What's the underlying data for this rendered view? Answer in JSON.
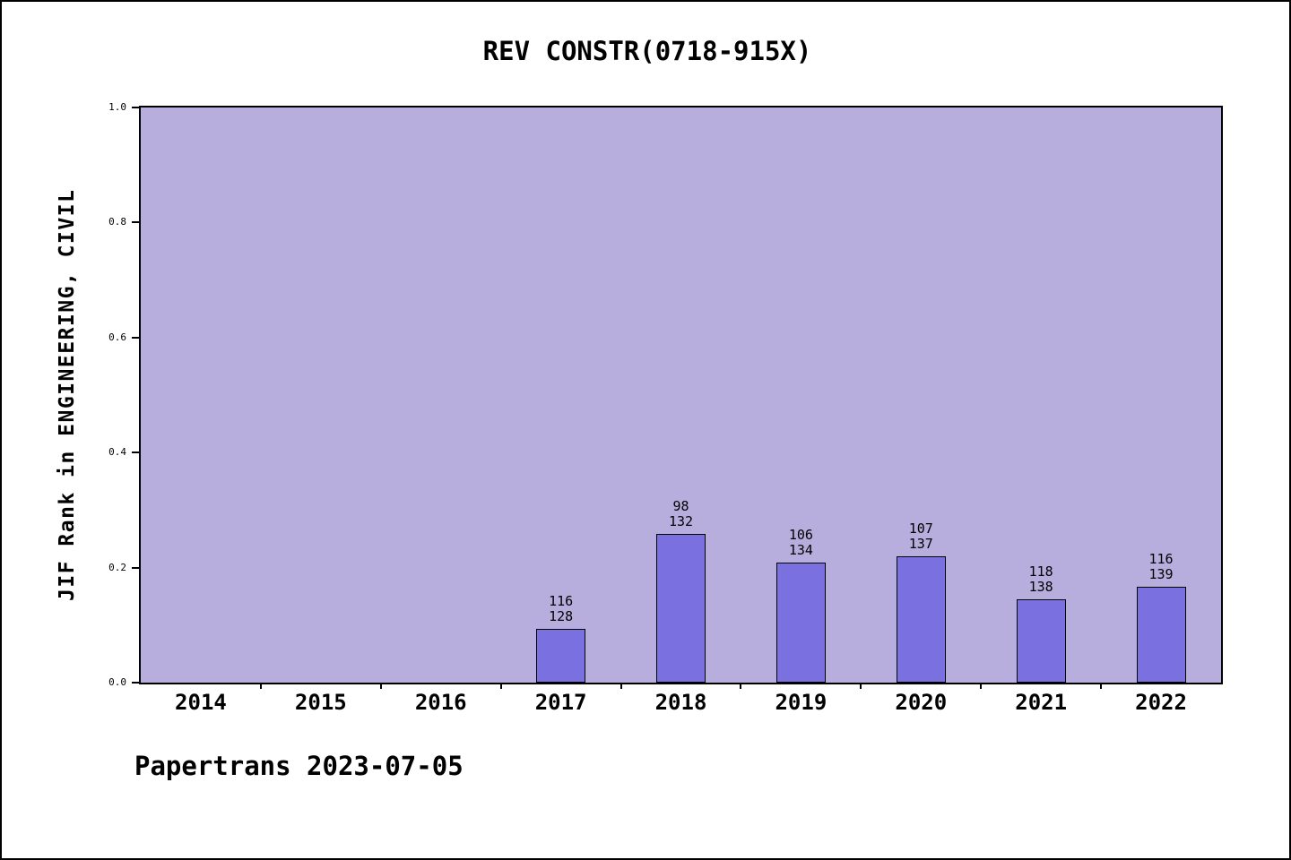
{
  "chart_data": {
    "type": "bar",
    "title": "REV CONSTR(0718-915X)",
    "ylabel": "JIF Rank in ENGINEERING, CIVIL",
    "xlabel": "",
    "categories": [
      "2014",
      "2015",
      "2016",
      "2017",
      "2018",
      "2019",
      "2020",
      "2021",
      "2022"
    ],
    "yticks": [
      0.0,
      0.2,
      0.4,
      0.6,
      0.8,
      1.0
    ],
    "ylim": [
      0,
      1
    ],
    "grid": false,
    "legend_position": "none",
    "bars": [
      {
        "category": "2017",
        "rank": 116,
        "total": 128,
        "value": 0.094
      },
      {
        "category": "2018",
        "rank": 98,
        "total": 132,
        "value": 0.258
      },
      {
        "category": "2019",
        "rank": 106,
        "total": 134,
        "value": 0.209
      },
      {
        "category": "2020",
        "rank": 107,
        "total": 137,
        "value": 0.219
      },
      {
        "category": "2021",
        "rank": 118,
        "total": 138,
        "value": 0.145
      },
      {
        "category": "2022",
        "rank": 116,
        "total": 139,
        "value": 0.166
      }
    ],
    "colors": {
      "plot_background": "#b7aede",
      "bar_fill": "#7b70e0",
      "bar_border": "#000000",
      "axis": "#000000"
    }
  },
  "footer": {
    "text": "Papertrans 2023-07-05"
  }
}
